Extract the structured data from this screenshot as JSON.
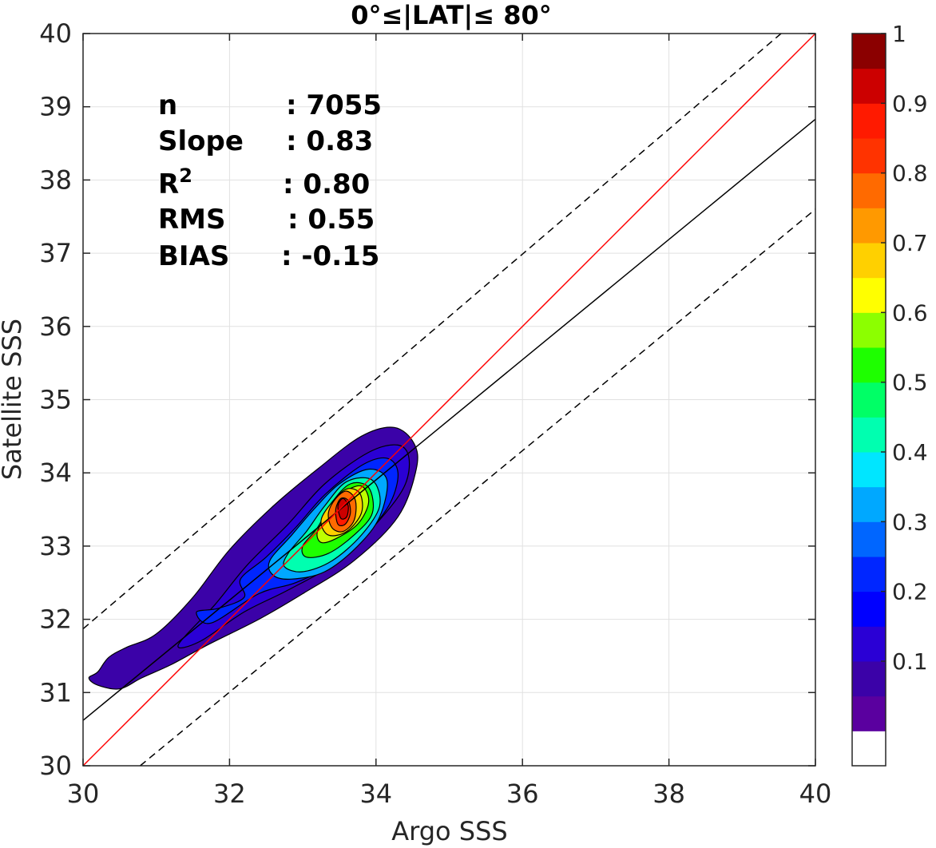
{
  "chart_data": {
    "type": "contour-scatter",
    "title": "0°≤|LAT|≤ 80°",
    "xlabel": "Argo SSS",
    "ylabel": "Satellite SSS",
    "xlim": [
      30,
      40
    ],
    "ylim": [
      30,
      40
    ],
    "xticks": [
      "30",
      "32",
      "34",
      "36",
      "38",
      "40"
    ],
    "yticks": [
      "30",
      "31",
      "32",
      "33",
      "34",
      "35",
      "36",
      "37",
      "38",
      "39",
      "40"
    ],
    "grid": true,
    "stats": [
      {
        "label": "n",
        "value": ": 7055"
      },
      {
        "label": "Slope",
        "value": ": 0.83"
      },
      {
        "label": "R",
        "sup": "2",
        "value": ": 0.80"
      },
      {
        "label": "RMS",
        "value": ": 0.55"
      },
      {
        "label": "BIAS",
        "value": ": -0.15"
      }
    ],
    "lines": {
      "one_to_one": {
        "x": [
          30,
          40
        ],
        "y": [
          30,
          40
        ],
        "color": "#ff0000"
      },
      "fit": {
        "x": [
          30,
          40
        ],
        "y": [
          30.62,
          38.83
        ],
        "color": "#000000"
      },
      "upper_bound": {
        "x": [
          30,
          40
        ],
        "y": [
          31.87,
          40.4
        ],
        "color": "#000000",
        "style": "dashed"
      },
      "lower_bound": {
        "x": [
          30.78,
          40
        ],
        "y": [
          30,
          37.6
        ],
        "color": "#000000",
        "style": "dashed"
      }
    },
    "density_levels": [
      {
        "level": 0.05,
        "color": "#3b02a8",
        "points": [
          [
            30.08,
            31.2
          ],
          [
            30.2,
            31.28
          ],
          [
            30.35,
            31.48
          ],
          [
            30.6,
            31.62
          ],
          [
            31.0,
            31.8
          ],
          [
            31.5,
            32.3
          ],
          [
            32.0,
            32.95
          ],
          [
            32.6,
            33.55
          ],
          [
            33.2,
            34.05
          ],
          [
            33.8,
            34.5
          ],
          [
            34.25,
            34.62
          ],
          [
            34.52,
            34.4
          ],
          [
            34.55,
            34.05
          ],
          [
            34.3,
            33.4
          ],
          [
            33.7,
            32.8
          ],
          [
            33.0,
            32.35
          ],
          [
            32.4,
            32.0
          ],
          [
            31.7,
            31.65
          ],
          [
            31.2,
            31.38
          ],
          [
            30.8,
            31.2
          ],
          [
            30.5,
            31.05
          ],
          [
            30.2,
            31.1
          ]
        ]
      },
      {
        "level": 0.1,
        "color": "#2a00d5",
        "points": [
          [
            31.3,
            31.65
          ],
          [
            31.8,
            32.2
          ],
          [
            32.25,
            32.75
          ],
          [
            32.8,
            33.3
          ],
          [
            33.3,
            33.85
          ],
          [
            33.9,
            34.28
          ],
          [
            34.3,
            34.38
          ],
          [
            34.45,
            34.2
          ],
          [
            34.38,
            33.8
          ],
          [
            34.0,
            33.3
          ],
          [
            33.5,
            32.8
          ],
          [
            32.8,
            32.4
          ],
          [
            32.2,
            32.1
          ],
          [
            31.6,
            31.7
          ]
        ]
      },
      {
        "level": 0.2,
        "color": "#0026ff",
        "points": [
          [
            32.15,
            32.55
          ],
          [
            32.5,
            32.85
          ],
          [
            32.9,
            33.25
          ],
          [
            33.3,
            33.7
          ],
          [
            33.8,
            34.1
          ],
          [
            34.15,
            34.2
          ],
          [
            34.3,
            34.0
          ],
          [
            34.2,
            33.6
          ],
          [
            33.9,
            33.2
          ],
          [
            33.4,
            32.75
          ],
          [
            32.9,
            32.5
          ],
          [
            32.4,
            32.35
          ],
          [
            31.75,
            31.95
          ],
          [
            31.55,
            32.1
          ],
          [
            31.85,
            32.15
          ],
          [
            32.2,
            32.3
          ]
        ]
      },
      {
        "level": 0.3,
        "color": "#00a8ff",
        "points": [
          [
            32.55,
            32.8
          ],
          [
            32.85,
            33.15
          ],
          [
            33.15,
            33.5
          ],
          [
            33.5,
            33.85
          ],
          [
            33.9,
            34.05
          ],
          [
            34.15,
            33.9
          ],
          [
            34.05,
            33.4
          ],
          [
            33.75,
            33.0
          ],
          [
            33.3,
            32.65
          ],
          [
            32.85,
            32.55
          ],
          [
            32.6,
            32.6
          ]
        ]
      },
      {
        "level": 0.4,
        "color": "#00ffb0",
        "points": [
          [
            32.8,
            32.9
          ],
          [
            33.05,
            33.2
          ],
          [
            33.3,
            33.55
          ],
          [
            33.6,
            33.88
          ],
          [
            33.95,
            33.9
          ],
          [
            34.05,
            33.55
          ],
          [
            33.8,
            33.15
          ],
          [
            33.4,
            32.8
          ],
          [
            33.0,
            32.65
          ],
          [
            32.75,
            32.72
          ]
        ]
      },
      {
        "level": 0.5,
        "color": "#1eff00",
        "points": [
          [
            33.0,
            33.0
          ],
          [
            33.2,
            33.25
          ],
          [
            33.4,
            33.6
          ],
          [
            33.65,
            33.85
          ],
          [
            33.9,
            33.8
          ],
          [
            33.95,
            33.45
          ],
          [
            33.7,
            33.15
          ],
          [
            33.35,
            32.9
          ],
          [
            33.05,
            32.85
          ]
        ]
      },
      {
        "level": 0.6,
        "color": "#bfff00",
        "points": [
          [
            33.2,
            33.2
          ],
          [
            33.35,
            33.45
          ],
          [
            33.55,
            33.72
          ],
          [
            33.8,
            33.82
          ],
          [
            33.9,
            33.6
          ],
          [
            33.75,
            33.3
          ],
          [
            33.45,
            33.1
          ],
          [
            33.25,
            33.05
          ]
        ]
      },
      {
        "level": 0.7,
        "color": "#ffd000",
        "points": [
          [
            33.25,
            33.35
          ],
          [
            33.4,
            33.6
          ],
          [
            33.6,
            33.78
          ],
          [
            33.78,
            33.72
          ],
          [
            33.8,
            33.45
          ],
          [
            33.6,
            33.2
          ],
          [
            33.35,
            33.15
          ]
        ]
      },
      {
        "level": 0.8,
        "color": "#ff6a00",
        "points": [
          [
            33.35,
            33.45
          ],
          [
            33.45,
            33.65
          ],
          [
            33.6,
            33.75
          ],
          [
            33.72,
            33.62
          ],
          [
            33.7,
            33.35
          ],
          [
            33.55,
            33.2
          ],
          [
            33.4,
            33.25
          ]
        ]
      },
      {
        "level": 0.9,
        "color": "#ff1a00",
        "points": [
          [
            33.45,
            33.5
          ],
          [
            33.52,
            33.65
          ],
          [
            33.62,
            33.62
          ],
          [
            33.65,
            33.45
          ],
          [
            33.58,
            33.3
          ],
          [
            33.48,
            33.3
          ]
        ]
      },
      {
        "level": 1.0,
        "color": "#cc0000",
        "points": [
          [
            33.48,
            33.55
          ],
          [
            33.55,
            33.65
          ],
          [
            33.62,
            33.55
          ],
          [
            33.6,
            33.4
          ],
          [
            33.52,
            33.38
          ]
        ]
      }
    ],
    "colorbar": {
      "ticks": [
        "0.1",
        "0.2",
        "0.3",
        "0.4",
        "0.5",
        "0.6",
        "0.7",
        "0.8",
        "0.9",
        "1"
      ],
      "colors": [
        "#ffffff",
        "#5a009f",
        "#3b02a8",
        "#2a00d5",
        "#0000ff",
        "#0026ff",
        "#0066ff",
        "#00a8ff",
        "#00e6ff",
        "#00ffb0",
        "#00ff66",
        "#1eff00",
        "#8cff00",
        "#ffff00",
        "#ffd000",
        "#ff9900",
        "#ff6a00",
        "#ff3300",
        "#ff1a00",
        "#cc0000",
        "#8b0000"
      ]
    }
  }
}
